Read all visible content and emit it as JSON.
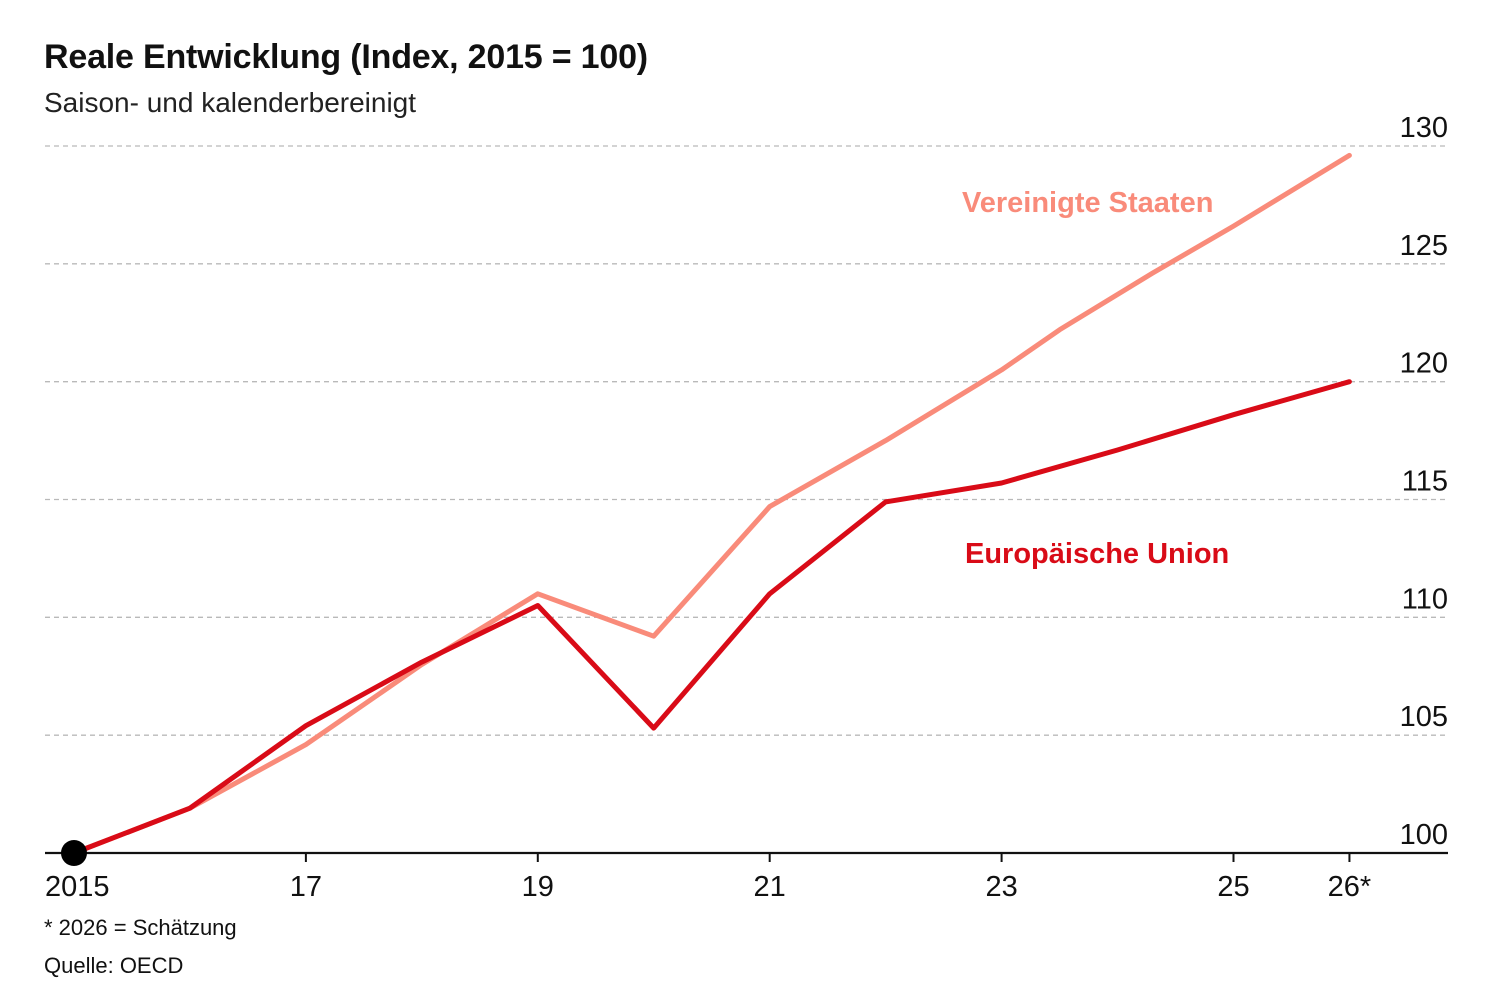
{
  "chart_data": {
    "type": "line",
    "title": "Reale Entwicklung (Index, 2015 = 100)",
    "subtitle": "Saison- und kalenderbereinigt",
    "xlabel": "",
    "ylabel": "",
    "x_ticks": [
      {
        "x": 2015,
        "label": "2015"
      },
      {
        "x": 2017,
        "label": "17"
      },
      {
        "x": 2019,
        "label": "19"
      },
      {
        "x": 2021,
        "label": "21"
      },
      {
        "x": 2023,
        "label": "23"
      },
      {
        "x": 2025,
        "label": "25"
      },
      {
        "x": 2026,
        "label": "26*"
      }
    ],
    "y_ticks": [
      100,
      105,
      110,
      115,
      120,
      125,
      130
    ],
    "xlim": [
      2014.75,
      2026.85
    ],
    "ylim": [
      100,
      130
    ],
    "grid": true,
    "y_axis_position": "right",
    "series": [
      {
        "name": "Vereinigte Staaten",
        "color": "#f98b7a",
        "points": [
          {
            "x": 2015,
            "y": 100.0
          },
          {
            "x": 2016,
            "y": 101.9
          },
          {
            "x": 2017,
            "y": 104.6
          },
          {
            "x": 2018,
            "y": 108.0
          },
          {
            "x": 2018.7,
            "y": 110.1
          },
          {
            "x": 2019,
            "y": 111.0
          },
          {
            "x": 2020,
            "y": 109.2
          },
          {
            "x": 2021,
            "y": 114.7
          },
          {
            "x": 2022,
            "y": 117.5
          },
          {
            "x": 2023,
            "y": 120.5
          },
          {
            "x": 2023.5,
            "y": 122.2
          },
          {
            "x": 2024.3,
            "y": 124.6
          },
          {
            "x": 2025,
            "y": 126.6
          },
          {
            "x": 2026,
            "y": 129.6
          }
        ]
      },
      {
        "name": "Europäische Union",
        "color": "#d90b17",
        "points": [
          {
            "x": 2015,
            "y": 100.0
          },
          {
            "x": 2016,
            "y": 101.9
          },
          {
            "x": 2017,
            "y": 105.4
          },
          {
            "x": 2018,
            "y": 108.1
          },
          {
            "x": 2019,
            "y": 110.5
          },
          {
            "x": 2020,
            "y": 105.3
          },
          {
            "x": 2021,
            "y": 111.0
          },
          {
            "x": 2022,
            "y": 114.9
          },
          {
            "x": 2023,
            "y": 115.7
          },
          {
            "x": 2024,
            "y": 117.1
          },
          {
            "x": 2025,
            "y": 118.6
          },
          {
            "x": 2026,
            "y": 120.0
          }
        ]
      }
    ],
    "start_marker": {
      "x": 2015,
      "y": 100,
      "color": "#000000"
    },
    "footnote": "* 2026 = Schätzung",
    "source": "Quelle: OECD"
  }
}
